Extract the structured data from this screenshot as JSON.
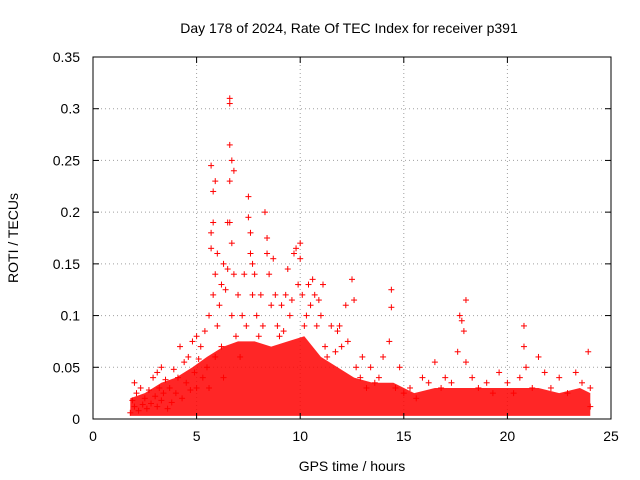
{
  "chart_data": {
    "type": "scatter",
    "title": "Day 178 of 2024, Rate Of TEC Index for receiver p391",
    "xlabel": "GPS time / hours",
    "ylabel": "ROTI / TECUs",
    "xlim": [
      0,
      25
    ],
    "ylim": [
      0,
      0.35
    ],
    "xticks": [
      0,
      5,
      10,
      15,
      20,
      25
    ],
    "yticks": [
      0,
      0.05,
      0.1,
      0.15,
      0.2,
      0.25,
      0.3,
      0.35
    ],
    "xtick_labels": [
      "0",
      "5",
      "10",
      "15",
      "20",
      "25"
    ],
    "ytick_labels": [
      "0",
      "0.05",
      "0.1",
      "0.15",
      "0.2",
      "0.25",
      "0.3",
      "0.35"
    ],
    "grid": true,
    "marker": "+",
    "marker_color": "#ff0000",
    "series": [
      {
        "name": "ROTI p391",
        "points": [
          [
            1.8,
            0.006
          ],
          [
            1.9,
            0.018
          ],
          [
            2.0,
            0.035
          ],
          [
            2.0,
            0.012
          ],
          [
            2.1,
            0.025
          ],
          [
            2.2,
            0.008
          ],
          [
            2.3,
            0.03
          ],
          [
            2.4,
            0.014
          ],
          [
            2.5,
            0.02
          ],
          [
            2.6,
            0.01
          ],
          [
            2.7,
            0.028
          ],
          [
            2.8,
            0.015
          ],
          [
            2.9,
            0.04
          ],
          [
            3.0,
            0.022
          ],
          [
            3.1,
            0.045
          ],
          [
            3.1,
            0.012
          ],
          [
            3.2,
            0.03
          ],
          [
            3.3,
            0.05
          ],
          [
            3.3,
            0.018
          ],
          [
            3.4,
            0.025
          ],
          [
            3.5,
            0.038
          ],
          [
            3.6,
            0.01
          ],
          [
            3.7,
            0.03
          ],
          [
            3.8,
            0.016
          ],
          [
            3.9,
            0.048
          ],
          [
            4.0,
            0.025
          ],
          [
            4.1,
            0.04
          ],
          [
            4.2,
            0.07
          ],
          [
            4.3,
            0.02
          ],
          [
            4.4,
            0.055
          ],
          [
            4.5,
            0.035
          ],
          [
            4.6,
            0.06
          ],
          [
            4.7,
            0.028
          ],
          [
            4.8,
            0.075
          ],
          [
            4.9,
            0.045
          ],
          [
            5.0,
            0.08
          ],
          [
            5.0,
            0.03
          ],
          [
            5.1,
            0.058
          ],
          [
            5.2,
            0.07
          ],
          [
            5.3,
            0.04
          ],
          [
            5.4,
            0.085
          ],
          [
            5.5,
            0.05
          ],
          [
            5.6,
            0.1
          ],
          [
            5.6,
            0.03
          ],
          [
            5.7,
            0.18
          ],
          [
            5.7,
            0.245
          ],
          [
            5.7,
            0.165
          ],
          [
            5.8,
            0.22
          ],
          [
            5.8,
            0.19
          ],
          [
            5.8,
            0.12
          ],
          [
            5.9,
            0.23
          ],
          [
            5.9,
            0.14
          ],
          [
            5.9,
            0.06
          ],
          [
            6.0,
            0.16
          ],
          [
            6.0,
            0.09
          ],
          [
            6.1,
            0.11
          ],
          [
            6.2,
            0.13
          ],
          [
            6.2,
            0.07
          ],
          [
            6.3,
            0.15
          ],
          [
            6.3,
            0.04
          ],
          [
            6.4,
            0.125
          ],
          [
            6.5,
            0.145
          ],
          [
            6.5,
            0.19
          ],
          [
            6.6,
            0.265
          ],
          [
            6.6,
            0.23
          ],
          [
            6.6,
            0.19
          ],
          [
            6.6,
            0.31
          ],
          [
            6.6,
            0.305
          ],
          [
            6.7,
            0.25
          ],
          [
            6.7,
            0.17
          ],
          [
            6.7,
            0.1
          ],
          [
            6.8,
            0.24
          ],
          [
            6.8,
            0.14
          ],
          [
            6.9,
            0.08
          ],
          [
            7.0,
            0.12
          ],
          [
            7.1,
            0.06
          ],
          [
            7.2,
            0.1
          ],
          [
            7.3,
            0.14
          ],
          [
            7.4,
            0.09
          ],
          [
            7.5,
            0.215
          ],
          [
            7.5,
            0.195
          ],
          [
            7.6,
            0.18
          ],
          [
            7.6,
            0.16
          ],
          [
            7.7,
            0.15
          ],
          [
            7.7,
            0.12
          ],
          [
            7.8,
            0.14
          ],
          [
            7.9,
            0.1
          ],
          [
            8.0,
            0.08
          ],
          [
            8.1,
            0.12
          ],
          [
            8.2,
            0.09
          ],
          [
            8.3,
            0.2
          ],
          [
            8.4,
            0.175
          ],
          [
            8.4,
            0.16
          ],
          [
            8.5,
            0.14
          ],
          [
            8.6,
            0.11
          ],
          [
            8.7,
            0.155
          ],
          [
            8.8,
            0.12
          ],
          [
            8.9,
            0.09
          ],
          [
            9.0,
            0.08
          ],
          [
            9.1,
            0.11
          ],
          [
            9.2,
            0.085
          ],
          [
            9.3,
            0.12
          ],
          [
            9.4,
            0.145
          ],
          [
            9.5,
            0.1
          ],
          [
            9.6,
            0.115
          ],
          [
            9.7,
            0.16
          ],
          [
            9.8,
            0.165
          ],
          [
            9.9,
            0.13
          ],
          [
            10.0,
            0.155
          ],
          [
            10.0,
            0.17
          ],
          [
            10.1,
            0.12
          ],
          [
            10.2,
            0.09
          ],
          [
            10.3,
            0.1
          ],
          [
            10.4,
            0.13
          ],
          [
            10.5,
            0.11
          ],
          [
            10.6,
            0.135
          ],
          [
            10.7,
            0.12
          ],
          [
            10.8,
            0.09
          ],
          [
            10.9,
            0.115
          ],
          [
            11.0,
            0.1
          ],
          [
            11.1,
            0.13
          ],
          [
            11.2,
            0.07
          ],
          [
            11.3,
            0.06
          ],
          [
            11.5,
            0.09
          ],
          [
            11.7,
            0.065
          ],
          [
            11.8,
            0.085
          ],
          [
            11.9,
            0.09
          ],
          [
            12.0,
            0.07
          ],
          [
            12.2,
            0.11
          ],
          [
            12.3,
            0.075
          ],
          [
            12.5,
            0.135
          ],
          [
            12.6,
            0.115
          ],
          [
            12.7,
            0.05
          ],
          [
            12.9,
            0.04
          ],
          [
            13.0,
            0.06
          ],
          [
            13.2,
            0.03
          ],
          [
            13.4,
            0.05
          ],
          [
            13.6,
            0.035
          ],
          [
            13.8,
            0.04
          ],
          [
            14.0,
            0.06
          ],
          [
            14.3,
            0.075
          ],
          [
            14.4,
            0.125
          ],
          [
            14.4,
            0.108
          ],
          [
            14.6,
            0.03
          ],
          [
            14.8,
            0.05
          ],
          [
            15.0,
            0.025
          ],
          [
            15.3,
            0.03
          ],
          [
            15.6,
            0.02
          ],
          [
            15.9,
            0.04
          ],
          [
            16.2,
            0.035
          ],
          [
            16.5,
            0.055
          ],
          [
            16.8,
            0.03
          ],
          [
            17.0,
            0.04
          ],
          [
            17.3,
            0.035
          ],
          [
            17.6,
            0.065
          ],
          [
            17.7,
            0.1
          ],
          [
            17.8,
            0.095
          ],
          [
            17.9,
            0.085
          ],
          [
            18.0,
            0.115
          ],
          [
            18.0,
            0.055
          ],
          [
            18.3,
            0.04
          ],
          [
            18.6,
            0.03
          ],
          [
            19.0,
            0.035
          ],
          [
            19.3,
            0.025
          ],
          [
            19.6,
            0.045
          ],
          [
            20.0,
            0.035
          ],
          [
            20.3,
            0.025
          ],
          [
            20.6,
            0.04
          ],
          [
            20.8,
            0.09
          ],
          [
            20.8,
            0.07
          ],
          [
            20.9,
            0.05
          ],
          [
            21.2,
            0.03
          ],
          [
            21.5,
            0.06
          ],
          [
            21.8,
            0.045
          ],
          [
            22.1,
            0.03
          ],
          [
            22.5,
            0.04
          ],
          [
            22.9,
            0.025
          ],
          [
            23.3,
            0.045
          ],
          [
            23.6,
            0.035
          ],
          [
            23.9,
            0.065
          ],
          [
            24.0,
            0.03
          ],
          [
            24.0,
            0.012
          ]
        ]
      }
    ]
  }
}
